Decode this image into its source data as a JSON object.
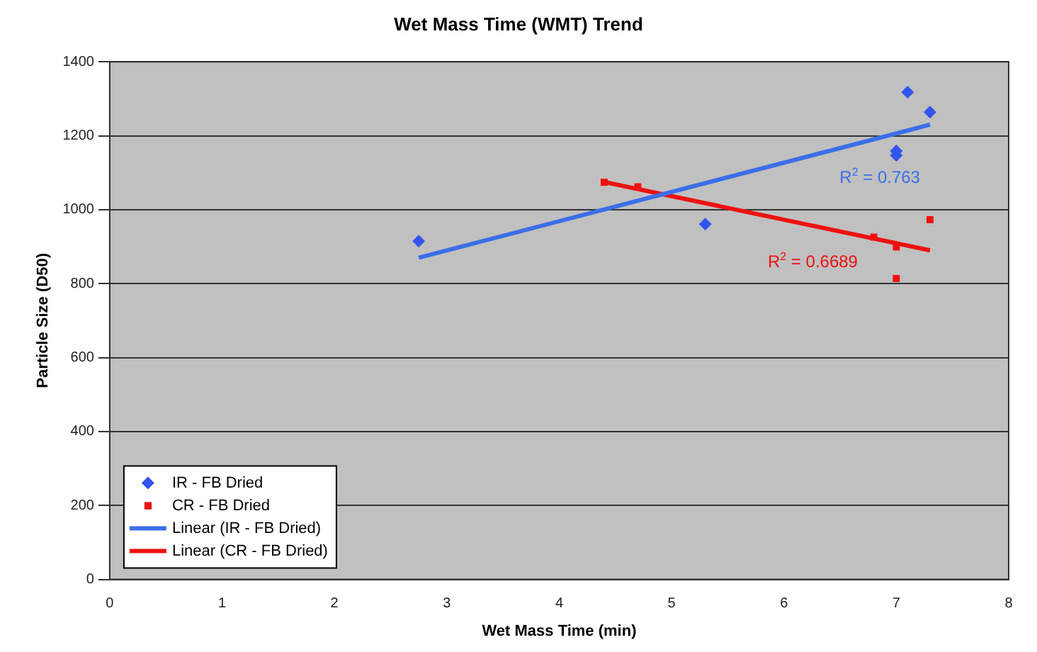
{
  "chart_data": {
    "type": "scatter",
    "title": "Wet Mass Time (WMT) Trend",
    "xlabel": "Wet Mass Time (min)",
    "ylabel": "Particle Size (D50)",
    "xlim": [
      0,
      8
    ],
    "xticks": [
      0,
      1,
      2,
      3,
      4,
      5,
      6,
      7,
      8
    ],
    "ylim": [
      0,
      1400
    ],
    "yticks": [
      0,
      200,
      400,
      600,
      800,
      1000,
      1200,
      1400
    ],
    "grid": "y",
    "legend": "bottom left",
    "series": [
      {
        "name": "IR - FB Dried",
        "color": "#3355ee",
        "marker": "diamond",
        "x": [
          2.75,
          5.3,
          7.0,
          7.0,
          7.1,
          7.3
        ],
        "values": [
          915,
          961,
          1159,
          1147,
          1318,
          1264
        ]
      },
      {
        "name": "CR - FB Dried",
        "color": "#ee1111",
        "marker": "square",
        "x": [
          4.4,
          4.7,
          6.8,
          7.0,
          7.0,
          7.3
        ],
        "values": [
          1074,
          1062,
          926,
          899,
          814,
          973
        ]
      },
      {
        "name": "Linear (IR - FB Dried)",
        "type": "line",
        "color": "#3b6ee8",
        "marker": "none",
        "x": [
          2.75,
          7.3
        ],
        "values": [
          870,
          1230
        ]
      },
      {
        "name": "Linear (CR - FB Dried)",
        "type": "line",
        "color": "#ee1111",
        "marker": "none",
        "x": [
          4.4,
          7.3
        ],
        "values": [
          1075,
          890
        ]
      }
    ],
    "annotations": [
      "R$^{2}$ = 0.763",
      "R$^{2}$ = 0.6689"
    ]
  }
}
